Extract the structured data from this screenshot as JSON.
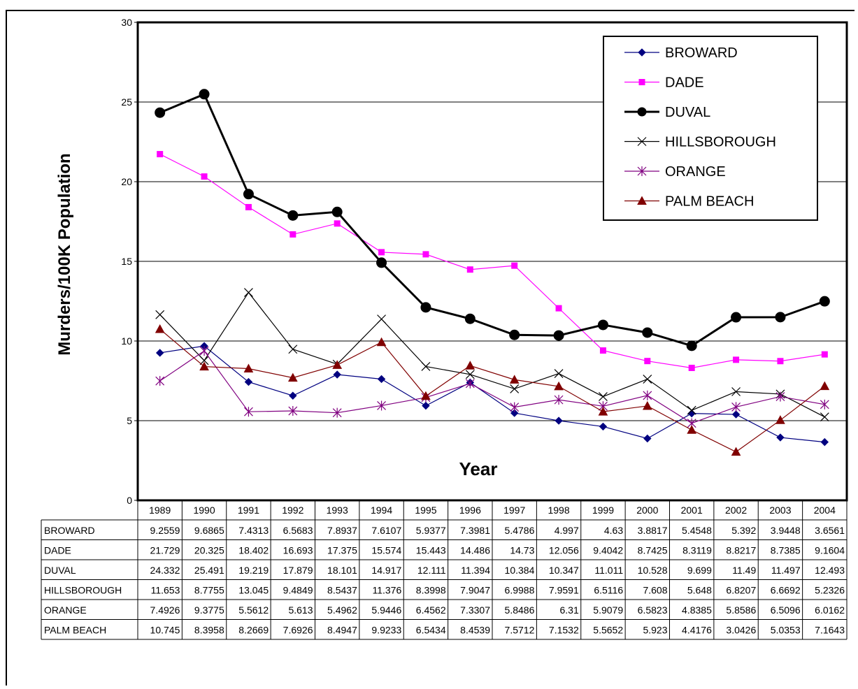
{
  "chart_data": {
    "type": "line",
    "title": "",
    "xlabel": "Year",
    "ylabel": "Murders/100K Population",
    "ylim": [
      0,
      30
    ],
    "yticks": [
      "0",
      "5",
      "10",
      "15",
      "20",
      "25",
      "30"
    ],
    "grid": true,
    "legend_position": "top-right",
    "categories": [
      "1989",
      "1990",
      "1991",
      "1992",
      "1993",
      "1994",
      "1995",
      "1996",
      "1997",
      "1998",
      "1999",
      "2000",
      "2001",
      "2002",
      "2003",
      "2004"
    ],
    "series": [
      {
        "name": "BROWARD",
        "color": "#000080",
        "marker": "diamond",
        "values": [
          9.2559,
          9.6865,
          7.4313,
          6.5683,
          7.8937,
          7.6107,
          5.9377,
          7.3981,
          5.4786,
          4.997,
          4.63,
          3.8817,
          5.4548,
          5.392,
          3.9448,
          3.6561
        ],
        "labels": [
          "9.2559",
          "9.6865",
          "7.4313",
          "6.5683",
          "7.8937",
          "7.6107",
          "5.9377",
          "7.3981",
          "5.4786",
          "4.997",
          "4.63",
          "3.8817",
          "5.4548",
          "5.392",
          "3.9448",
          "3.6561"
        ]
      },
      {
        "name": "DADE",
        "color": "#FF00FF",
        "marker": "square",
        "values": [
          21.729,
          20.325,
          18.402,
          16.693,
          17.375,
          15.574,
          15.443,
          14.486,
          14.73,
          12.056,
          9.4042,
          8.7425,
          8.3119,
          8.8217,
          8.7385,
          9.1604
        ],
        "labels": [
          "21.729",
          "20.325",
          "18.402",
          "16.693",
          "17.375",
          "15.574",
          "15.443",
          "14.486",
          "14.73",
          "12.056",
          "9.4042",
          "8.7425",
          "8.3119",
          "8.8217",
          "8.7385",
          "9.1604"
        ]
      },
      {
        "name": "DUVAL",
        "color": "#000000",
        "marker": "circle",
        "values": [
          24.332,
          25.491,
          19.219,
          17.879,
          18.101,
          14.917,
          12.111,
          11.394,
          10.384,
          10.347,
          11.011,
          10.528,
          9.699,
          11.49,
          11.497,
          12.493
        ],
        "labels": [
          "24.332",
          "25.491",
          "19.219",
          "17.879",
          "18.101",
          "14.917",
          "12.111",
          "11.394",
          "10.384",
          "10.347",
          "11.011",
          "10.528",
          "9.699",
          "11.49",
          "11.497",
          "12.493"
        ]
      },
      {
        "name": "HILLSBOROUGH",
        "color": "#000000",
        "marker": "x",
        "values": [
          11.653,
          8.7755,
          13.045,
          9.4849,
          8.5437,
          11.376,
          8.3998,
          7.9047,
          6.9988,
          7.9591,
          6.5116,
          7.608,
          5.648,
          6.8207,
          6.6692,
          5.2326
        ],
        "labels": [
          "11.653",
          "8.7755",
          "13.045",
          "9.4849",
          "8.5437",
          "11.376",
          "8.3998",
          "7.9047",
          "6.9988",
          "7.9591",
          "6.5116",
          "7.608",
          "5.648",
          "6.8207",
          "6.6692",
          "5.2326"
        ]
      },
      {
        "name": "ORANGE",
        "color": "#800080",
        "marker": "star",
        "values": [
          7.4926,
          9.3775,
          5.5612,
          5.613,
          5.4962,
          5.9446,
          6.4562,
          7.3307,
          5.8486,
          6.31,
          5.9079,
          6.5823,
          4.8385,
          5.8586,
          6.5096,
          6.0162
        ],
        "labels": [
          "7.4926",
          "9.3775",
          "5.5612",
          "5.613",
          "5.4962",
          "5.9446",
          "6.4562",
          "7.3307",
          "5.8486",
          "6.31",
          "5.9079",
          "6.5823",
          "4.8385",
          "5.8586",
          "6.5096",
          "6.0162"
        ]
      },
      {
        "name": "PALM BEACH",
        "color": "#800000",
        "marker": "triangle",
        "values": [
          10.745,
          8.3958,
          8.2669,
          7.6926,
          8.4947,
          9.9233,
          6.5434,
          8.4539,
          7.5712,
          7.1532,
          5.5652,
          5.923,
          4.4176,
          3.0426,
          5.0353,
          7.1643
        ],
        "labels": [
          "10.745",
          "8.3958",
          "8.2669",
          "7.6926",
          "8.4947",
          "9.9233",
          "6.5434",
          "8.4539",
          "7.5712",
          "7.1532",
          "5.5652",
          "5.923",
          "4.4176",
          "3.0426",
          "5.0353",
          "7.1643"
        ]
      }
    ]
  }
}
